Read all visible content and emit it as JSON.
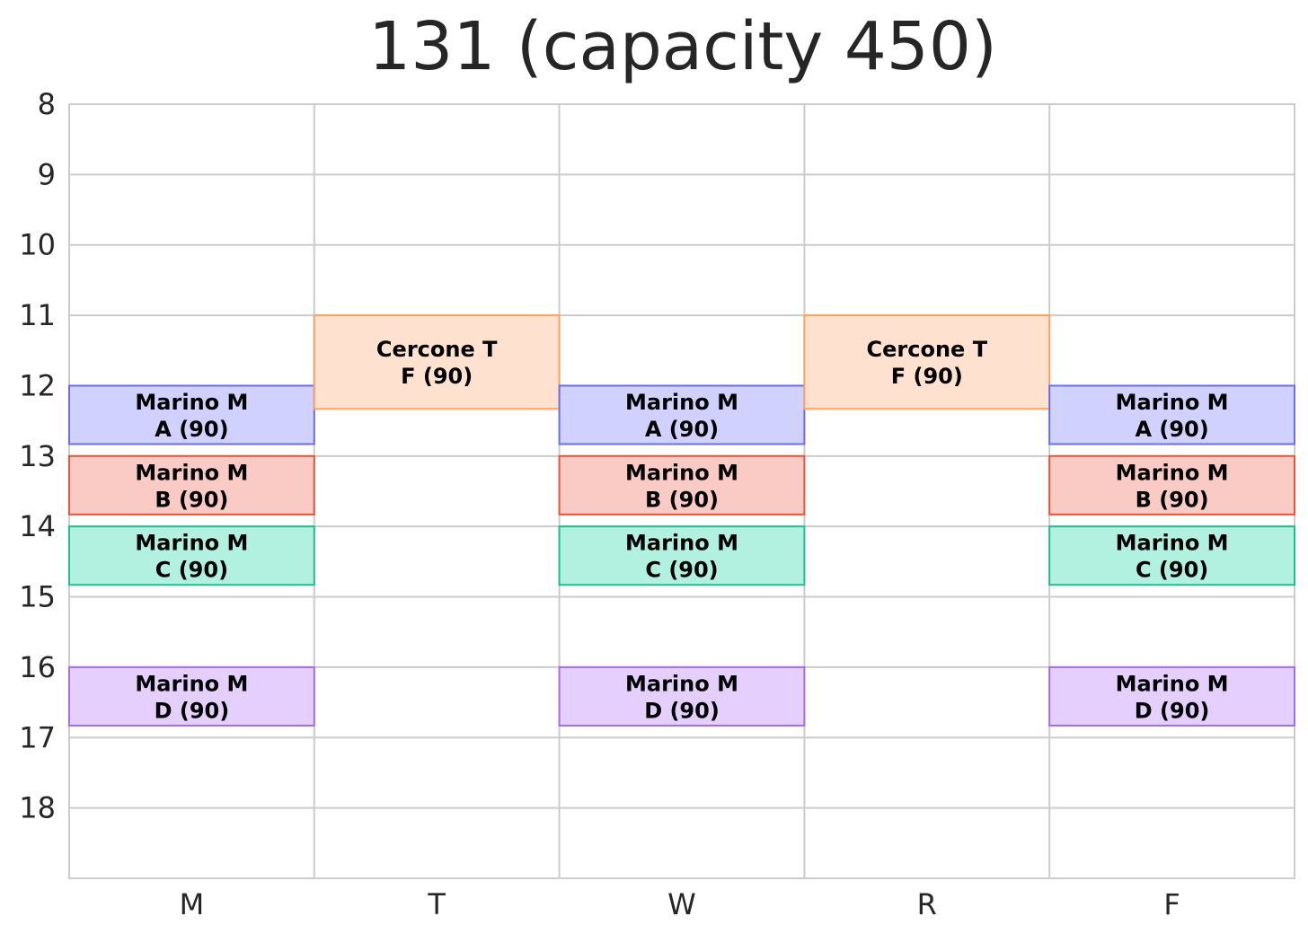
{
  "chart_data": {
    "type": "timetable",
    "title": "131 (capacity 450)",
    "days": [
      "M",
      "T",
      "W",
      "R",
      "F"
    ],
    "y_ticks": [
      8,
      9,
      10,
      11,
      12,
      13,
      14,
      15,
      16,
      17,
      18
    ],
    "ylim": [
      8,
      19
    ],
    "grid": true,
    "y_inverted": true,
    "blocks": [
      {
        "day": "M",
        "start": 12.0,
        "end": 12.83,
        "instructor": "Marino M",
        "section": "A (90)",
        "fill": "#d0d1ff",
        "stroke": "#6b6fe6"
      },
      {
        "day": "M",
        "start": 13.0,
        "end": 13.83,
        "instructor": "Marino M",
        "section": "B (90)",
        "fill": "#facbc4",
        "stroke": "#e6553a"
      },
      {
        "day": "M",
        "start": 14.0,
        "end": 14.83,
        "instructor": "Marino M",
        "section": "C (90)",
        "fill": "#b2f0df",
        "stroke": "#1fbf8f"
      },
      {
        "day": "M",
        "start": 16.0,
        "end": 16.83,
        "instructor": "Marino M",
        "section": "D (90)",
        "fill": "#e4cffd",
        "stroke": "#a66be6"
      },
      {
        "day": "T",
        "start": 11.0,
        "end": 12.33,
        "instructor": "Cercone T",
        "section": "F (90)",
        "fill": "#ffe1cf",
        "stroke": "#ffa15c"
      },
      {
        "day": "W",
        "start": 12.0,
        "end": 12.83,
        "instructor": "Marino M",
        "section": "A (90)",
        "fill": "#d0d1ff",
        "stroke": "#6b6fe6"
      },
      {
        "day": "W",
        "start": 13.0,
        "end": 13.83,
        "instructor": "Marino M",
        "section": "B (90)",
        "fill": "#facbc4",
        "stroke": "#e6553a"
      },
      {
        "day": "W",
        "start": 14.0,
        "end": 14.83,
        "instructor": "Marino M",
        "section": "C (90)",
        "fill": "#b2f0df",
        "stroke": "#1fbf8f"
      },
      {
        "day": "W",
        "start": 16.0,
        "end": 16.83,
        "instructor": "Marino M",
        "section": "D (90)",
        "fill": "#e4cffd",
        "stroke": "#a66be6"
      },
      {
        "day": "R",
        "start": 11.0,
        "end": 12.33,
        "instructor": "Cercone T",
        "section": "F (90)",
        "fill": "#ffe1cf",
        "stroke": "#ffa15c"
      },
      {
        "day": "F",
        "start": 12.0,
        "end": 12.83,
        "instructor": "Marino M",
        "section": "A (90)",
        "fill": "#d0d1ff",
        "stroke": "#6b6fe6"
      },
      {
        "day": "F",
        "start": 13.0,
        "end": 13.83,
        "instructor": "Marino M",
        "section": "B (90)",
        "fill": "#facbc4",
        "stroke": "#e6553a"
      },
      {
        "day": "F",
        "start": 14.0,
        "end": 14.83,
        "instructor": "Marino M",
        "section": "C (90)",
        "fill": "#b2f0df",
        "stroke": "#1fbf8f"
      },
      {
        "day": "F",
        "start": 16.0,
        "end": 16.83,
        "instructor": "Marino M",
        "section": "D (90)",
        "fill": "#e4cffd",
        "stroke": "#a66be6"
      }
    ]
  }
}
